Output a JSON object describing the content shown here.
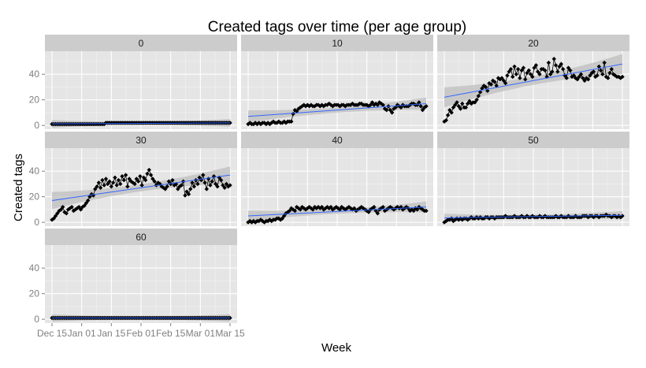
{
  "chart_data": {
    "type": "scatter",
    "title": "Created tags over time (per age group)",
    "xlabel": "Week",
    "ylabel": "Created tags",
    "x_tick_labels": [
      "Dec 15",
      "Jan 01",
      "Jan 15",
      "Feb 01",
      "Feb 15",
      "Mar 01",
      "Mar 15"
    ],
    "y_ticks": [
      0,
      20,
      40
    ],
    "ylim": [
      -3,
      58
    ],
    "grid": true,
    "facets": [
      {
        "label": "0",
        "values": [
          1,
          1,
          1,
          1,
          1,
          1,
          1,
          1,
          1,
          1,
          1,
          1,
          1,
          1,
          1,
          1,
          1,
          1,
          1,
          1,
          1,
          1,
          1,
          1,
          1,
          1,
          1,
          1,
          1,
          1,
          2,
          2,
          2,
          2,
          2,
          2,
          2,
          2,
          2,
          2,
          2,
          2,
          2,
          2,
          2,
          2,
          2,
          2,
          2,
          2,
          2,
          2,
          2,
          2,
          2,
          2,
          2,
          2,
          2,
          2,
          2,
          2,
          2,
          2,
          2,
          2,
          2,
          2,
          2,
          2,
          2,
          2,
          2,
          2,
          2,
          2,
          2,
          2,
          2,
          2,
          2,
          2,
          2,
          2,
          2,
          2,
          2,
          2,
          2,
          2,
          2,
          2,
          2,
          2,
          2,
          2,
          2,
          2,
          2,
          2
        ],
        "trend": [
          1.2,
          2.0
        ]
      },
      {
        "label": "10",
        "values": [
          1,
          2,
          1,
          1,
          2,
          1,
          2,
          1,
          2,
          2,
          1,
          2,
          1,
          2,
          3,
          2,
          2,
          3,
          2,
          2,
          3,
          2,
          3,
          3,
          3,
          9,
          12,
          11,
          13,
          14,
          15,
          16,
          15,
          16,
          15,
          16,
          15,
          15,
          16,
          16,
          15,
          16,
          15,
          16,
          16,
          17,
          16,
          15,
          16,
          16,
          16,
          15,
          16,
          16,
          15,
          16,
          16,
          16,
          17,
          16,
          16,
          16,
          17,
          17,
          16,
          16,
          16,
          15,
          16,
          18,
          16,
          17,
          16,
          18,
          17,
          16,
          13,
          12,
          15,
          12,
          10,
          13,
          14,
          16,
          15,
          14,
          16,
          15,
          15,
          15,
          16,
          17,
          17,
          16,
          16,
          18,
          15,
          12,
          14,
          15
        ],
        "trend": [
          7,
          17
        ]
      },
      {
        "label": "20",
        "values": [
          3,
          4,
          8,
          12,
          10,
          14,
          16,
          18,
          15,
          13,
          17,
          14,
          14,
          17,
          19,
          17,
          18,
          18,
          20,
          23,
          26,
          29,
          31,
          30,
          27,
          33,
          32,
          35,
          34,
          31,
          37,
          36,
          37,
          35,
          33,
          39,
          42,
          44,
          38,
          46,
          40,
          44,
          37,
          43,
          45,
          36,
          41,
          43,
          40,
          38,
          45,
          47,
          42,
          40,
          44,
          44,
          43,
          38,
          49,
          40,
          42,
          52,
          47,
          42,
          46,
          48,
          44,
          39,
          37,
          45,
          43,
          38,
          39,
          37,
          36,
          38,
          40,
          37,
          35,
          37,
          36,
          39,
          41,
          42,
          38,
          39,
          46,
          43,
          40,
          49,
          38,
          37,
          41,
          44,
          40,
          39,
          38,
          38,
          37,
          38
        ],
        "trend": [
          22,
          48
        ]
      },
      {
        "label": "30",
        "values": [
          2,
          3,
          5,
          7,
          9,
          10,
          12,
          8,
          7,
          10,
          11,
          12,
          9,
          10,
          11,
          12,
          10,
          12,
          13,
          15,
          17,
          20,
          22,
          21,
          26,
          28,
          31,
          27,
          33,
          29,
          34,
          30,
          32,
          28,
          31,
          35,
          29,
          33,
          30,
          36,
          33,
          37,
          28,
          34,
          32,
          31,
          30,
          34,
          32,
          36,
          29,
          35,
          33,
          38,
          41,
          37,
          34,
          32,
          29,
          31,
          30,
          28,
          27,
          26,
          28,
          32,
          30,
          33,
          29,
          30,
          26,
          28,
          29,
          32,
          21,
          24,
          22,
          26,
          31,
          28,
          33,
          30,
          35,
          33,
          37,
          31,
          26,
          34,
          29,
          32,
          36,
          30,
          28,
          35,
          33,
          29,
          27,
          30,
          28,
          29
        ],
        "trend": [
          17,
          37
        ]
      },
      {
        "label": "40",
        "values": [
          0,
          1,
          0,
          1,
          0,
          1,
          1,
          2,
          1,
          0,
          1,
          1,
          2,
          1,
          2,
          2,
          3,
          3,
          2,
          3,
          5,
          7,
          8,
          9,
          11,
          10,
          9,
          12,
          11,
          10,
          12,
          11,
          10,
          11,
          12,
          11,
          10,
          12,
          11,
          12,
          11,
          12,
          10,
          11,
          12,
          11,
          12,
          10,
          11,
          12,
          11,
          10,
          12,
          11,
          10,
          11,
          12,
          11,
          10,
          11,
          9,
          10,
          11,
          12,
          11,
          10,
          9,
          8,
          10,
          11,
          12,
          9,
          7,
          10,
          11,
          12,
          9,
          10,
          11,
          12,
          11,
          10,
          11,
          12,
          11,
          12,
          10,
          11,
          12,
          11,
          9,
          10,
          9,
          11,
          10,
          12,
          11,
          10,
          9,
          9
        ],
        "trend": [
          5,
          12
        ]
      },
      {
        "label": "50",
        "values": [
          0,
          1,
          2,
          2,
          3,
          1,
          2,
          3,
          2,
          3,
          2,
          3,
          3,
          2,
          3,
          4,
          3,
          3,
          4,
          3,
          4,
          3,
          3,
          4,
          4,
          3,
          4,
          4,
          3,
          4,
          4,
          4,
          4,
          4,
          5,
          4,
          4,
          4,
          4,
          5,
          4,
          4,
          4,
          5,
          4,
          4,
          5,
          4,
          4,
          5,
          4,
          4,
          4,
          5,
          4,
          4,
          5,
          4,
          4,
          4,
          4,
          4,
          5,
          4,
          4,
          5,
          4,
          4,
          4,
          5,
          4,
          4,
          4,
          5,
          4,
          4,
          4,
          5,
          5,
          5,
          4,
          5,
          5,
          4,
          5,
          5,
          4,
          5,
          5,
          5,
          6,
          5,
          5,
          4,
          5,
          5,
          4,
          5,
          4,
          5
        ],
        "trend": [
          3.5,
          5.5
        ]
      },
      {
        "label": "60",
        "values": [
          1,
          1,
          1,
          1,
          1,
          1,
          1,
          1,
          1,
          1,
          1,
          1,
          1,
          1,
          1,
          1,
          1,
          1,
          1,
          1,
          1,
          1,
          1,
          1,
          1,
          1,
          1,
          1,
          1,
          1,
          1,
          1,
          1,
          1,
          1,
          1,
          1,
          1,
          1,
          1,
          1,
          1,
          1,
          1,
          1,
          1,
          1,
          1,
          1,
          1,
          1,
          1,
          1,
          1,
          1,
          1,
          1,
          1,
          1,
          1,
          1,
          1,
          1,
          1,
          1,
          1,
          1,
          1,
          1,
          1,
          1,
          1,
          1,
          1,
          1,
          1,
          1,
          1,
          1,
          1,
          1,
          1,
          1,
          1,
          1,
          1,
          1,
          1,
          1,
          1,
          1,
          1,
          1,
          1,
          1,
          1,
          1,
          1,
          1,
          1
        ],
        "trend": [
          1,
          1
        ]
      }
    ],
    "colors": {
      "points": "#000000",
      "trend": "#3366ff",
      "band": "#bdbdbd",
      "panel": "#e5e5e5",
      "strip": "#cccccc",
      "grid": "#ffffff",
      "tick_text": "#7f7f7f"
    }
  }
}
